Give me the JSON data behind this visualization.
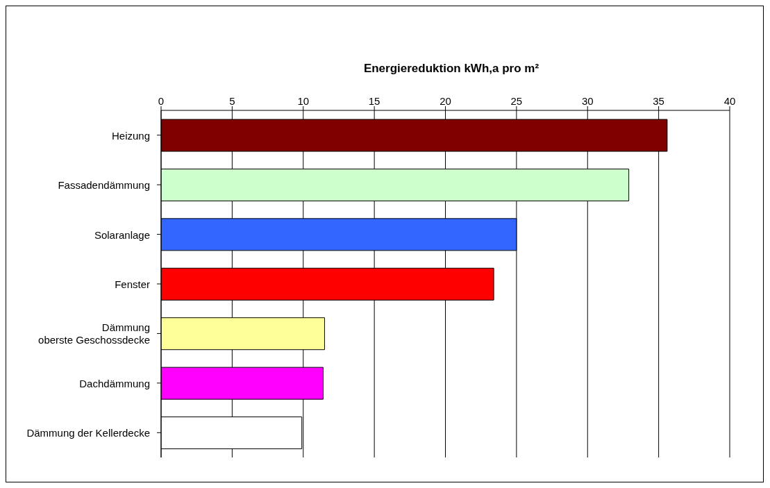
{
  "chart_data": {
    "type": "bar",
    "orientation": "horizontal",
    "title": "Energiereduktion kWh,a pro m²",
    "categories": [
      "Heizung",
      "Fassadendämmung",
      "Solaranlage",
      "Fenster",
      "Dämmung\noberste Geschossdecke",
      "Dachdämmung",
      "Dämmung der Kellerdecke"
    ],
    "values": [
      35.6,
      32.9,
      25,
      23.4,
      11.5,
      11.4,
      9.9
    ],
    "colors": [
      "#800000",
      "#ccffcc",
      "#3366ff",
      "#ff0000",
      "#ffff99",
      "#ff00ff",
      "#ffffff"
    ],
    "xlim": [
      0,
      40
    ],
    "xticks": [
      0,
      5,
      10,
      15,
      20,
      25,
      30,
      35,
      40
    ],
    "grid": "x"
  }
}
